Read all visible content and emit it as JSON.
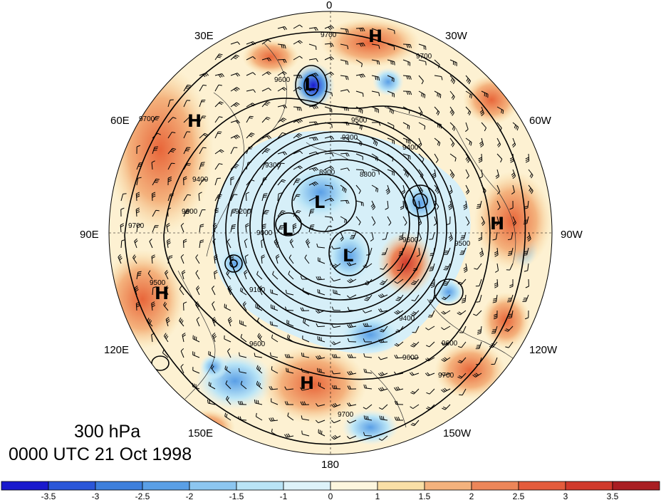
{
  "map": {
    "projection": "north-polar-stereographic",
    "longitude_labels": [
      "0",
      "30W",
      "60W",
      "90W",
      "120W",
      "150W",
      "180",
      "150E",
      "120E",
      "90E",
      "60E",
      "30E"
    ],
    "pressure_centers": [
      {
        "type": "H",
        "where": "north Atlantic / Greenland Sea"
      },
      {
        "type": "L",
        "where": "Scandinavia"
      },
      {
        "type": "H",
        "where": "western Russia"
      },
      {
        "type": "L",
        "where": "polar vortex west lobe"
      },
      {
        "type": "L",
        "where": "polar vortex center"
      },
      {
        "type": "L",
        "where": "Canadian Arctic"
      },
      {
        "type": "H",
        "where": "eastern North America"
      },
      {
        "type": "H",
        "where": "central Asia"
      },
      {
        "type": "H",
        "where": "north Pacific"
      }
    ],
    "contour_labels": [
      "9700",
      "9600",
      "9500",
      "9400",
      "9300",
      "9200",
      "9100",
      "9000",
      "8900",
      "8800"
    ],
    "anomaly_colors": {
      "neg": "#3d7fdc",
      "pos": "#e8663a"
    }
  },
  "info": {
    "level": "300 hPa",
    "time": "0000 UTC 21 Oct 1998"
  },
  "colorbar": {
    "ticks": [
      "-3.5",
      "-3",
      "-2.5",
      "-2",
      "-1.5",
      "-1",
      "0",
      "1",
      "1.5",
      "2",
      "2.5",
      "3",
      "3.5"
    ],
    "colors": [
      "#1a1acd",
      "#2a56d8",
      "#3d7fdc",
      "#5a9fe6",
      "#8cc6f0",
      "#b9e4f6",
      "#ddf2f9",
      "#fdf6de",
      "#f9dfa6",
      "#f4b27d",
      "#ec8659",
      "#e45c3c",
      "#d03a2c",
      "#a91e22"
    ]
  }
}
